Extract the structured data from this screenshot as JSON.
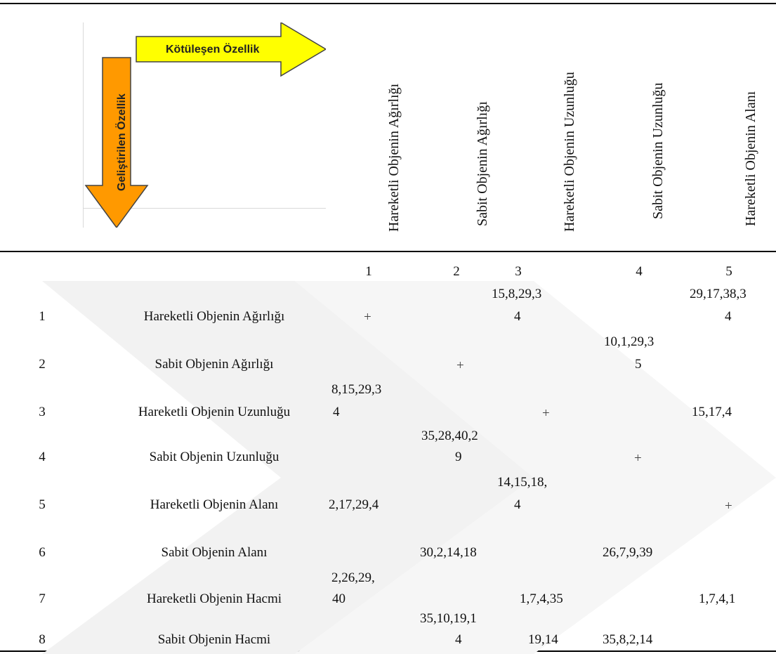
{
  "legend": {
    "worsening_label": "Kötüleşen Özellik",
    "improving_label": "Geliştirilen Özellik",
    "colors": {
      "horizontal_arrow": "#ffff00",
      "vertical_arrow": "#ff9900",
      "watermark": "#f2f2f2"
    }
  },
  "columns": [
    {
      "number": "1",
      "header": "Hareketli Objenin Ağırlığı"
    },
    {
      "number": "2",
      "header": "Sabit Objenin Ağırlığı"
    },
    {
      "number": "3",
      "header": "Hareketli Objenin Uzunluğu"
    },
    {
      "number": "4",
      "header": "Sabit Objenin Uzunluğu"
    },
    {
      "number": "5",
      "header": "Hareketli Objenin Alanı"
    }
  ],
  "rows": [
    {
      "number": "1",
      "name": "Hareketli Objenin Ağırlığı"
    },
    {
      "number": "2",
      "name": "Sabit Objenin Ağırlığı"
    },
    {
      "number": "3",
      "name": "Hareketli Objenin Uzunluğu"
    },
    {
      "number": "4",
      "name": "Sabit Objenin Uzunluğu"
    },
    {
      "number": "5",
      "name": "Hareketli Objenin Alanı"
    },
    {
      "number": "6",
      "name": "Sabit Objenin Alanı"
    },
    {
      "number": "7",
      "name": "Hareketli Objenin Hacmi"
    },
    {
      "number": "8",
      "name": "Sabit Objenin Hacmi"
    }
  ],
  "cells": {
    "r1c1": "+",
    "r1c3_a": "15,8,29,3",
    "r1c3_b": "4",
    "r1c5_a": "29,17,38,3",
    "r1c5_b": "4",
    "r2c2": "+",
    "r2c4_a": "10,1,29,3",
    "r2c4_b": "5",
    "r3c1_a": "8,15,29,3",
    "r3c1_b": "4",
    "r3c3": "+",
    "r3c5": "15,17,4",
    "r4c2_a": "35,28,40,2",
    "r4c2_b": "9",
    "r4c4": "+",
    "r5c1": "2,17,29,4",
    "r5c3_a": "14,15,18,",
    "r5c3_b": "4",
    "r5c5": "+",
    "r6c2": "30,2,14,18",
    "r6c4": "26,7,9,39",
    "r7c1_a": "2,26,29,",
    "r7c1_b": "40",
    "r7c3": "1,7,4,35",
    "r7c5": "1,7,4,1",
    "r8c2_a": "35,10,19,1",
    "r8c2_b": "4",
    "r8c3": "19,14",
    "r8c4": "35,8,2,14"
  }
}
